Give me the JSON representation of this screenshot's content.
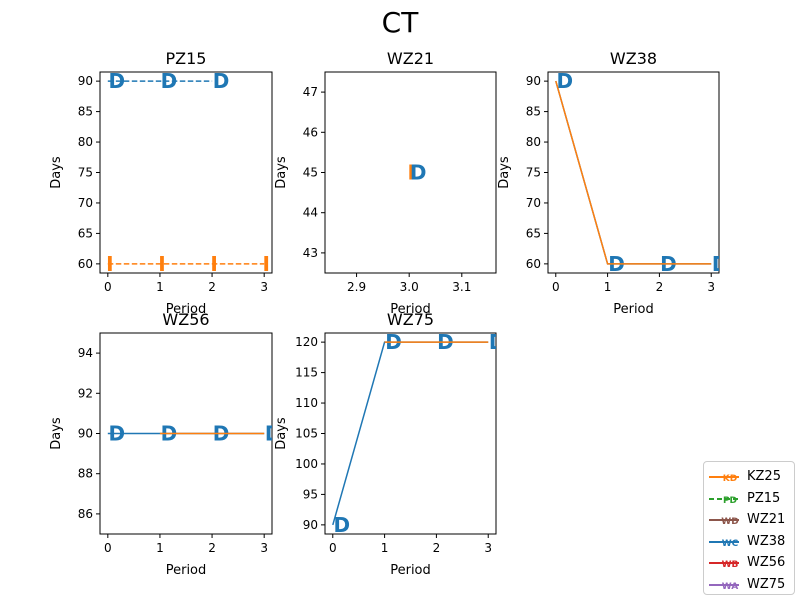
{
  "figure": {
    "title": "CT"
  },
  "chart_data": [
    {
      "type": "line",
      "title": "PZ15",
      "xlabel": "Period",
      "ylabel": "Days",
      "xlim": [
        -0.15,
        3.15
      ],
      "ylim": [
        58.5,
        91.5
      ],
      "xticks": [
        "0",
        "1",
        "2",
        "3"
      ],
      "yticks": [
        "60",
        "65",
        "70",
        "75",
        "80",
        "85",
        "90"
      ],
      "series": [
        {
          "color": "#1f77b4",
          "dash": "dashed",
          "marker": "D",
          "x": [
            0,
            1,
            2
          ],
          "y": [
            90,
            90,
            90
          ]
        },
        {
          "color": "#ff7f0e",
          "dash": "dashed",
          "marker": "I",
          "x": [
            0,
            1,
            2,
            3
          ],
          "y": [
            60,
            60,
            60,
            60
          ]
        }
      ]
    },
    {
      "type": "scatter",
      "title": "WZ21",
      "xlabel": "Period",
      "ylabel": "Days",
      "xlim": [
        2.84,
        3.165
      ],
      "ylim": [
        42.5,
        47.5
      ],
      "xticks": [
        "2.9",
        "3.0",
        "3.1"
      ],
      "yticks": [
        "43",
        "44",
        "45",
        "46",
        "47"
      ],
      "series": [
        {
          "color": "#ff7f0e",
          "dash": "solid",
          "marker": "I",
          "x": [
            3
          ],
          "y": [
            45
          ]
        },
        {
          "color": "#1f77b4",
          "dash": "solid",
          "marker": "D",
          "x": [
            3
          ],
          "y": [
            45
          ]
        }
      ]
    },
    {
      "type": "line",
      "title": "WZ38",
      "xlabel": "Period",
      "ylabel": "Days",
      "xlim": [
        -0.15,
        3.15
      ],
      "ylim": [
        58.5,
        91.5
      ],
      "xticks": [
        "0",
        "1",
        "2",
        "3"
      ],
      "yticks": [
        "60",
        "65",
        "70",
        "75",
        "80",
        "85",
        "90"
      ],
      "series": [
        {
          "color": "#1f77b4",
          "dash": "solid",
          "marker": "D",
          "x": [
            0,
            1,
            2,
            3
          ],
          "y": [
            90,
            60,
            60,
            60
          ]
        },
        {
          "color": "#ff7f0e",
          "dash": "solid",
          "marker": "",
          "x": [
            0,
            1,
            2,
            3
          ],
          "y": [
            90,
            60,
            60,
            60
          ]
        }
      ]
    },
    {
      "type": "line",
      "title": "WZ56",
      "xlabel": "Period",
      "ylabel": "Days",
      "xlim": [
        -0.15,
        3.15
      ],
      "ylim": [
        85,
        95
      ],
      "xticks": [
        "0",
        "1",
        "2",
        "3"
      ],
      "yticks": [
        "86",
        "88",
        "90",
        "92",
        "94"
      ],
      "series": [
        {
          "color": "#1f77b4",
          "dash": "solid",
          "marker": "D",
          "x": [
            0,
            1,
            2,
            3
          ],
          "y": [
            90,
            90,
            90,
            90
          ]
        },
        {
          "color": "#ff7f0e",
          "dash": "solid",
          "marker": "",
          "x": [
            1,
            2,
            3
          ],
          "y": [
            90,
            90,
            90
          ]
        }
      ]
    },
    {
      "type": "line",
      "title": "WZ75",
      "xlabel": "Period",
      "ylabel": "Days",
      "xlim": [
        -0.15,
        3.15
      ],
      "ylim": [
        88.5,
        121.5
      ],
      "xticks": [
        "0",
        "1",
        "2",
        "3"
      ],
      "yticks": [
        "90",
        "95",
        "100",
        "105",
        "110",
        "115",
        "120"
      ],
      "series": [
        {
          "color": "#1f77b4",
          "dash": "solid",
          "marker": "D",
          "x": [
            0,
            1,
            2,
            3
          ],
          "y": [
            90,
            120,
            120,
            120
          ]
        },
        {
          "color": "#ff7f0e",
          "dash": "solid",
          "marker": "",
          "x": [
            1,
            2,
            3
          ],
          "y": [
            120,
            120,
            120
          ]
        }
      ]
    }
  ],
  "legend": {
    "placement": "bottom-right",
    "entries": [
      {
        "label": "KZ25",
        "color": "#ff7f0e",
        "dash": "solid",
        "marker": "KD"
      },
      {
        "label": "PZ15",
        "color": "#2ca02c",
        "dash": "dashed",
        "marker": "PD"
      },
      {
        "label": "WZ21",
        "color": "#8c564b",
        "dash": "solid",
        "marker": "WD"
      },
      {
        "label": "WZ38",
        "color": "#1f77b4",
        "dash": "solid",
        "marker": "WC"
      },
      {
        "label": "WZ56",
        "color": "#d62728",
        "dash": "solid",
        "marker": "WB"
      },
      {
        "label": "WZ75",
        "color": "#9467bd",
        "dash": "solid",
        "marker": "WA"
      }
    ]
  }
}
